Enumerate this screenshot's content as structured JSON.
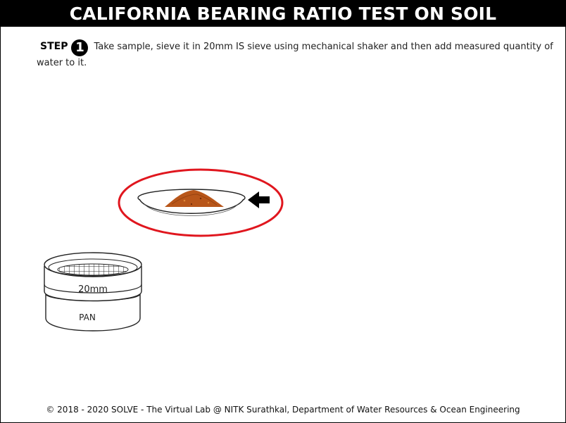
{
  "header": {
    "title": "CALIFORNIA BEARING RATIO TEST ON SOIL"
  },
  "step": {
    "label": "STEP",
    "number": "1",
    "instruction": "Take sample, sieve it in 20mm IS sieve using mechanical shaker and then add measured quantity of water to it."
  },
  "apparatus": {
    "sieve_label": "20mm",
    "pan_label": "PAN",
    "highlight_color": "#e0161e",
    "soil_color": "#b8561a"
  },
  "footer": {
    "copyright": "© 2018 - 2020 SOLVE - The Virtual Lab @ NITK Surathkal, Department of Water Resources & Ocean Engineering"
  }
}
